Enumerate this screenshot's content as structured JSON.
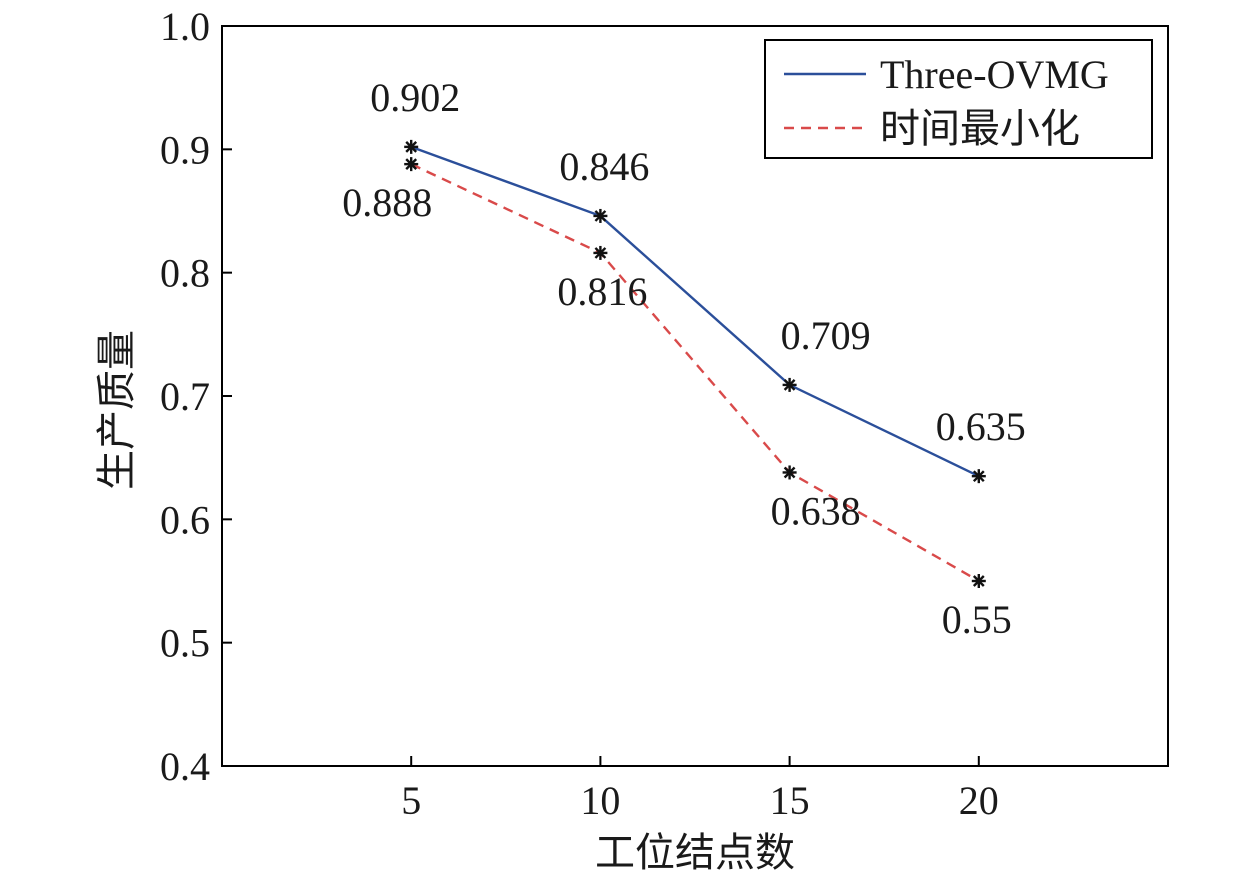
{
  "chart_data": {
    "type": "line",
    "xlabel": "工位结点数",
    "ylabel": "生产质量",
    "x": [
      5,
      10,
      15,
      20
    ],
    "xlim": [
      0,
      25
    ],
    "ylim": [
      0.4,
      1.0
    ],
    "xticks": [
      "5",
      "10",
      "15",
      "20"
    ],
    "yticks": [
      "0.4",
      "0.5",
      "0.6",
      "0.7",
      "0.8",
      "0.9",
      "1.0"
    ],
    "grid": false,
    "legend_position": "top-right",
    "series": [
      {
        "name": "Three-OVMG",
        "values": [
          0.902,
          0.846,
          0.709,
          0.635
        ],
        "labels": [
          "0.902",
          "0.846",
          "0.709",
          "0.635"
        ],
        "color": "#2b4f9a",
        "line_style": "solid",
        "marker": "asterisk"
      },
      {
        "name": "时间最小化",
        "values": [
          0.888,
          0.816,
          0.638,
          0.55
        ],
        "labels": [
          "0.888",
          "0.816",
          "0.638",
          "0.55"
        ],
        "color": "#d94a4a",
        "line_style": "dashed",
        "marker": "asterisk"
      }
    ]
  }
}
